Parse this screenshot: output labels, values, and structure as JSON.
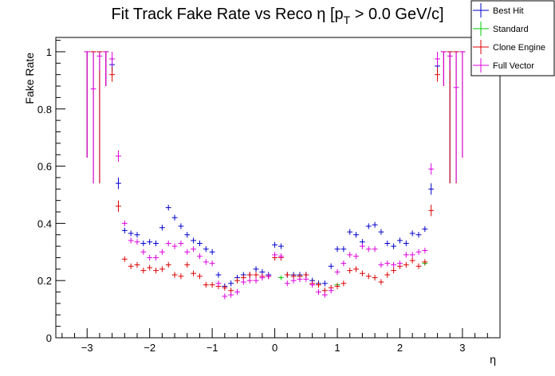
{
  "chart_data": {
    "type": "scatter",
    "title_prefix": "Fit Track Fake Rate vs Reco η [p",
    "title_sub": "T",
    "title_suffix": " > 0.0 GeV/c]",
    "xlabel": "η",
    "ylabel": "Fake Rate",
    "xlim": [
      -3.5,
      3.6
    ],
    "ylim": [
      0,
      1.05
    ],
    "x_ticks": [
      -3,
      -2,
      -1,
      0,
      1,
      2,
      3
    ],
    "x_tick_labels": [
      "−3",
      "−2",
      "−1",
      "0",
      "1",
      "2",
      "3"
    ],
    "y_ticks": [
      0,
      0.2,
      0.4,
      0.6,
      0.8,
      1
    ],
    "y_tick_labels": [
      "0",
      "0.2",
      "0.4",
      "0.6",
      "0.8",
      "1"
    ],
    "bin_width": 0.1,
    "legend_position": "top-right",
    "series": [
      {
        "name": "Best Hit",
        "color": "#0000cc",
        "x": [
          -3.0,
          -2.9,
          -2.8,
          -2.7,
          -2.6,
          -2.5,
          -2.4,
          -2.3,
          -2.2,
          -2.1,
          -2.0,
          -1.9,
          -1.8,
          -1.7,
          -1.6,
          -1.5,
          -1.4,
          -1.3,
          -1.2,
          -1.1,
          -1.0,
          -0.9,
          -0.8,
          -0.7,
          -0.6,
          -0.5,
          -0.4,
          -0.3,
          -0.2,
          -0.1,
          0.0,
          0.1,
          0.2,
          0.3,
          0.4,
          0.5,
          0.6,
          0.7,
          0.8,
          0.9,
          1.0,
          1.1,
          1.2,
          1.3,
          1.4,
          1.5,
          1.6,
          1.7,
          1.8,
          1.9,
          2.0,
          2.1,
          2.2,
          2.3,
          2.4,
          2.5,
          2.6,
          2.7,
          2.8,
          2.9,
          3.0
        ],
        "y": [
          1.0,
          1.0,
          1.0,
          1.0,
          0.955,
          0.54,
          0.375,
          0.365,
          0.36,
          0.33,
          0.335,
          0.33,
          0.385,
          0.455,
          0.42,
          0.39,
          0.36,
          0.34,
          0.33,
          0.31,
          0.3,
          0.22,
          0.18,
          0.19,
          0.21,
          0.22,
          0.22,
          0.24,
          0.23,
          0.22,
          0.325,
          0.32,
          0.22,
          0.22,
          0.22,
          0.22,
          0.2,
          0.19,
          0.19,
          0.25,
          0.31,
          0.31,
          0.37,
          0.36,
          0.335,
          0.39,
          0.395,
          0.37,
          0.33,
          0.32,
          0.34,
          0.33,
          0.365,
          0.36,
          0.38,
          0.52,
          0.95,
          1.0,
          1.0,
          1.0,
          1.0
        ],
        "yerr": [
          0.37,
          0.46,
          0.46,
          0.12,
          0.025,
          0.02,
          0.01,
          0.01,
          0.01,
          0.01,
          0.01,
          0.01,
          0.01,
          0.01,
          0.01,
          0.01,
          0.01,
          0.01,
          0.01,
          0.01,
          0.01,
          0.01,
          0.01,
          0.01,
          0.01,
          0.01,
          0.01,
          0.01,
          0.01,
          0.01,
          0.01,
          0.01,
          0.01,
          0.01,
          0.01,
          0.01,
          0.01,
          0.01,
          0.01,
          0.01,
          0.01,
          0.01,
          0.01,
          0.01,
          0.01,
          0.01,
          0.01,
          0.01,
          0.01,
          0.01,
          0.01,
          0.01,
          0.01,
          0.01,
          0.01,
          0.02,
          0.025,
          0.12,
          0.46,
          0.46,
          0.37
        ]
      },
      {
        "name": "Standard",
        "color": "#00cc00",
        "x": [
          -1.6,
          0.1,
          0.4,
          1.0,
          2.4
        ],
        "y": [
          0.22,
          0.21,
          0.215,
          0.185,
          0.26
        ],
        "yerr": [
          0.008,
          0.008,
          0.008,
          0.008,
          0.008
        ]
      },
      {
        "name": "Clone Engine",
        "color": "#dd0000",
        "x": [
          -3.0,
          -2.9,
          -2.8,
          -2.7,
          -2.6,
          -2.5,
          -2.4,
          -2.3,
          -2.2,
          -2.1,
          -2.0,
          -1.9,
          -1.8,
          -1.7,
          -1.6,
          -1.5,
          -1.4,
          -1.3,
          -1.2,
          -1.1,
          -1.0,
          -0.9,
          -0.8,
          -0.7,
          -0.6,
          -0.5,
          -0.4,
          -0.3,
          -0.2,
          -0.1,
          0.0,
          0.1,
          0.2,
          0.3,
          0.4,
          0.5,
          0.6,
          0.7,
          0.8,
          0.9,
          1.0,
          1.1,
          1.2,
          1.3,
          1.4,
          1.5,
          1.6,
          1.7,
          1.8,
          1.9,
          2.0,
          2.1,
          2.2,
          2.3,
          2.4,
          2.5,
          2.6,
          2.7,
          2.8,
          2.9,
          3.0
        ],
        "y": [
          1.0,
          1.0,
          1.0,
          1.0,
          0.92,
          0.46,
          0.275,
          0.25,
          0.255,
          0.235,
          0.245,
          0.235,
          0.24,
          0.255,
          0.22,
          0.215,
          0.255,
          0.225,
          0.215,
          0.185,
          0.185,
          0.18,
          0.175,
          0.165,
          0.2,
          0.21,
          0.22,
          0.22,
          0.215,
          0.215,
          0.28,
          0.28,
          0.22,
          0.215,
          0.215,
          0.22,
          0.19,
          0.185,
          0.165,
          0.175,
          0.18,
          0.19,
          0.235,
          0.24,
          0.225,
          0.215,
          0.21,
          0.195,
          0.22,
          0.235,
          0.25,
          0.255,
          0.27,
          0.25,
          0.265,
          0.445,
          0.92,
          1.0,
          1.0,
          1.0,
          1.0
        ],
        "yerr": [
          0.37,
          0.46,
          0.46,
          0.12,
          0.025,
          0.02,
          0.01,
          0.01,
          0.01,
          0.01,
          0.01,
          0.01,
          0.01,
          0.01,
          0.01,
          0.01,
          0.01,
          0.01,
          0.01,
          0.01,
          0.01,
          0.01,
          0.01,
          0.01,
          0.01,
          0.01,
          0.01,
          0.01,
          0.01,
          0.01,
          0.01,
          0.01,
          0.01,
          0.01,
          0.01,
          0.01,
          0.01,
          0.01,
          0.01,
          0.01,
          0.01,
          0.01,
          0.01,
          0.01,
          0.01,
          0.01,
          0.01,
          0.01,
          0.01,
          0.01,
          0.01,
          0.01,
          0.01,
          0.01,
          0.01,
          0.02,
          0.025,
          0.12,
          0.46,
          0.46,
          0.37
        ]
      },
      {
        "name": "Full Vector",
        "color": "#dd00dd",
        "x": [
          -3.0,
          -2.9,
          -2.8,
          -2.7,
          -2.6,
          -2.5,
          -2.4,
          -2.3,
          -2.2,
          -2.1,
          -2.0,
          -1.9,
          -1.8,
          -1.7,
          -1.6,
          -1.5,
          -1.4,
          -1.3,
          -1.2,
          -1.1,
          -1.0,
          -0.9,
          -0.8,
          -0.7,
          -0.6,
          -0.5,
          -0.4,
          -0.3,
          -0.2,
          -0.1,
          0.0,
          0.1,
          0.2,
          0.3,
          0.4,
          0.5,
          0.6,
          0.7,
          0.8,
          0.9,
          1.0,
          1.1,
          1.2,
          1.3,
          1.4,
          1.5,
          1.6,
          1.7,
          1.8,
          1.9,
          2.0,
          2.1,
          2.2,
          2.3,
          2.4,
          2.5,
          2.6,
          2.7,
          2.8,
          2.9,
          3.0
        ],
        "y": [
          1.0,
          0.87,
          0.985,
          1.0,
          0.975,
          0.635,
          0.4,
          0.34,
          0.335,
          0.3,
          0.28,
          0.28,
          0.3,
          0.33,
          0.32,
          0.33,
          0.3,
          0.31,
          0.285,
          0.265,
          0.26,
          0.19,
          0.145,
          0.15,
          0.16,
          0.195,
          0.2,
          0.2,
          0.21,
          0.215,
          0.29,
          0.285,
          0.19,
          0.2,
          0.205,
          0.205,
          0.185,
          0.16,
          0.15,
          0.165,
          0.23,
          0.26,
          0.29,
          0.285,
          0.32,
          0.31,
          0.31,
          0.255,
          0.26,
          0.255,
          0.26,
          0.29,
          0.29,
          0.3,
          0.305,
          0.59,
          0.975,
          1.0,
          0.985,
          0.875,
          1.0
        ],
        "yerr": [
          0.37,
          0.33,
          0.05,
          0.12,
          0.025,
          0.02,
          0.01,
          0.01,
          0.01,
          0.01,
          0.01,
          0.01,
          0.01,
          0.01,
          0.01,
          0.01,
          0.01,
          0.01,
          0.01,
          0.01,
          0.01,
          0.01,
          0.01,
          0.01,
          0.01,
          0.01,
          0.01,
          0.01,
          0.01,
          0.01,
          0.01,
          0.01,
          0.01,
          0.01,
          0.01,
          0.01,
          0.01,
          0.01,
          0.01,
          0.01,
          0.01,
          0.01,
          0.01,
          0.01,
          0.01,
          0.01,
          0.01,
          0.01,
          0.01,
          0.01,
          0.01,
          0.01,
          0.01,
          0.01,
          0.01,
          0.02,
          0.025,
          0.12,
          0.05,
          0.33,
          0.37
        ]
      }
    ]
  }
}
